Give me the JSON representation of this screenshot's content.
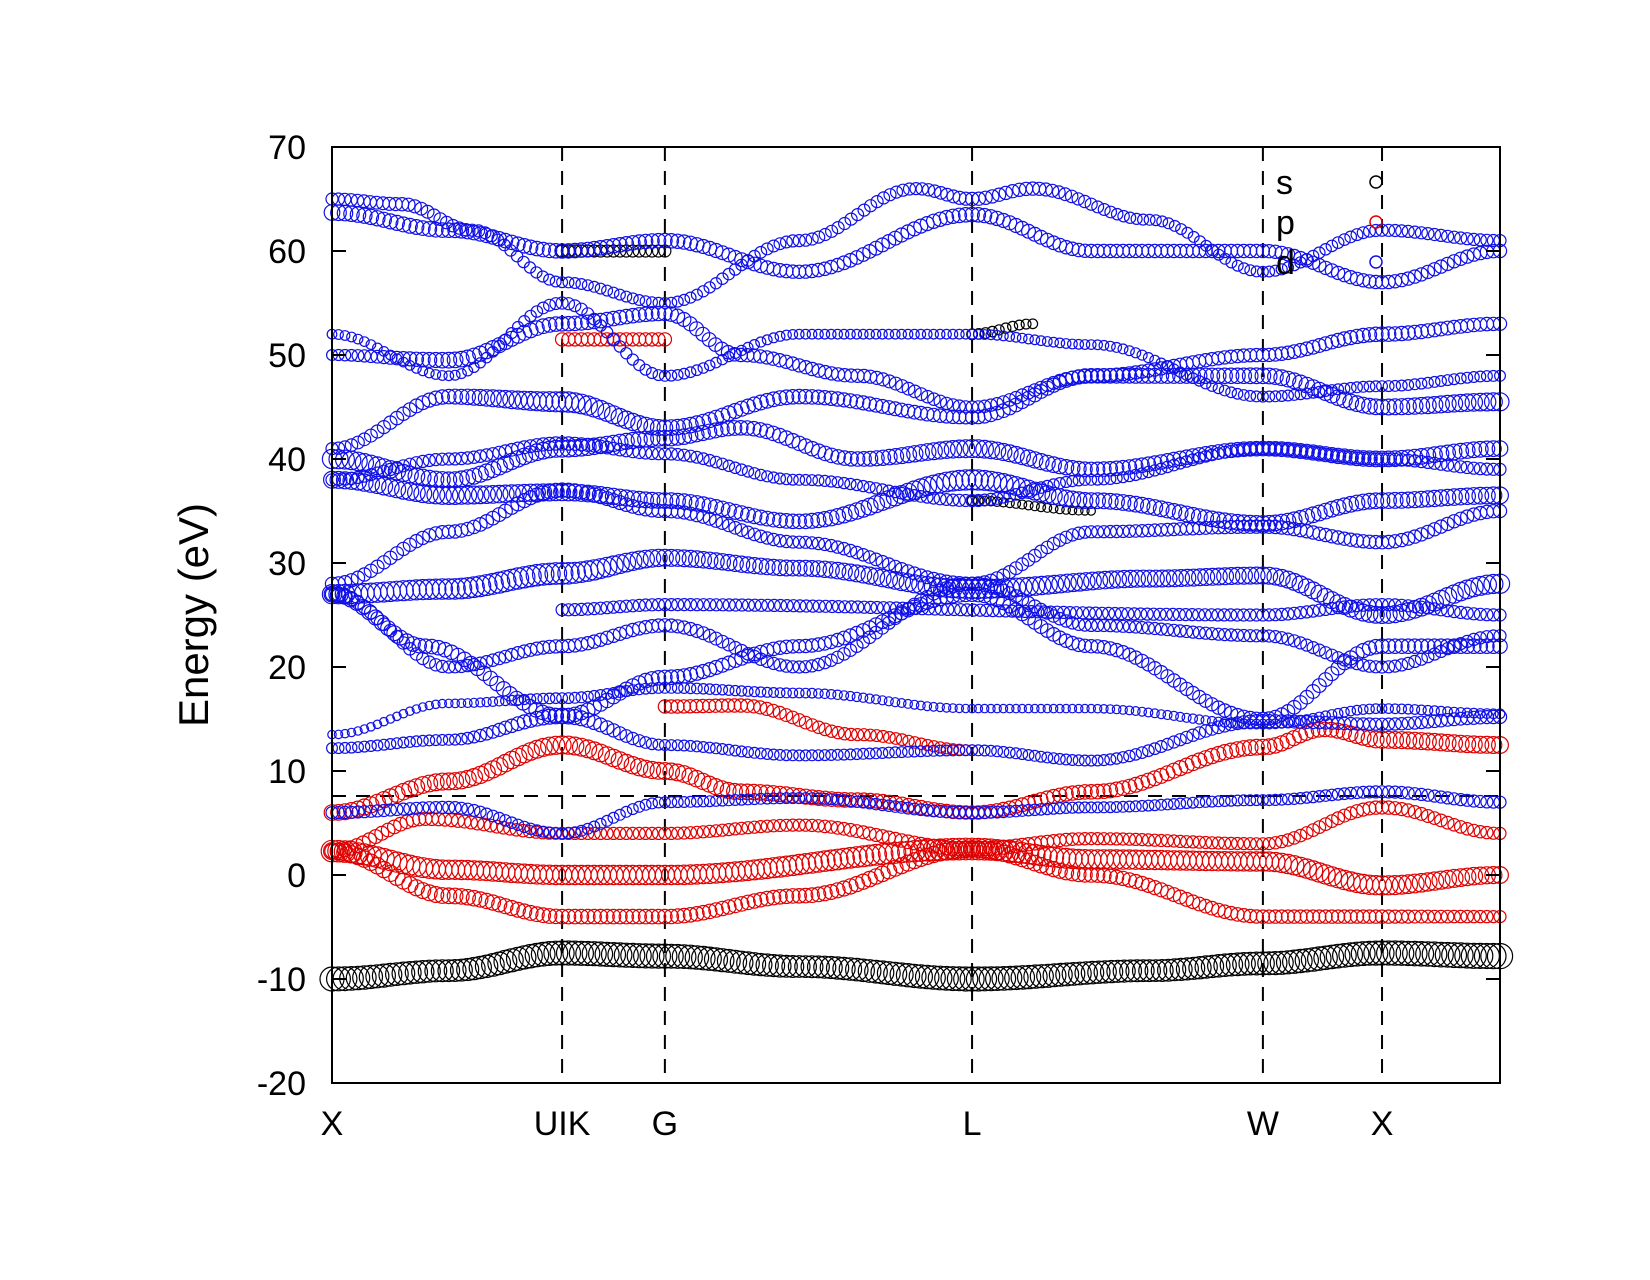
{
  "chart_data": {
    "type": "scatter",
    "title": "",
    "xlabel": "",
    "ylabel": "Energy (eV)",
    "ylim": [
      -20,
      70
    ],
    "yticks": [
      -20,
      -10,
      0,
      10,
      20,
      30,
      40,
      50,
      60,
      70
    ],
    "ytick_labels": [
      "-20",
      "-10",
      "0",
      "10",
      "20",
      "30",
      "40",
      "50",
      "60",
      "70"
    ],
    "xlim": [
      0,
      1
    ],
    "kpoints": [
      {
        "label": "X",
        "pos": 0.0,
        "line": false
      },
      {
        "label": "UIK",
        "pos": 0.197,
        "line": true
      },
      {
        "label": "G",
        "pos": 0.285,
        "line": true
      },
      {
        "label": "L",
        "pos": 0.548,
        "line": true
      },
      {
        "label": "W",
        "pos": 0.797,
        "line": true
      },
      {
        "label": "X",
        "pos": 0.899,
        "line": true
      }
    ],
    "fermi_level": 7.6,
    "legend": {
      "placement": "top-right",
      "entries": [
        {
          "name": "s",
          "color": "#000000"
        },
        {
          "name": "p",
          "color": "#e00000"
        },
        {
          "name": "d",
          "color": "#1010e8"
        }
      ]
    },
    "series": [
      {
        "name": "s",
        "color": "#000000",
        "bands": [
          {
            "x": [
              0,
              0.1,
              0.197,
              0.285,
              0.4,
              0.548,
              0.7,
              0.797,
              0.899,
              1.0
            ],
            "y": [
              -10,
              -9.2,
              -7.5,
              -7.8,
              -8.8,
              -10,
              -9.2,
              -8.5,
              -7.5,
              -7.8
            ],
            "size": [
              0.9,
              0.8,
              0.9,
              0.9,
              0.8,
              0.9,
              0.8,
              0.85,
              0.9,
              0.95
            ]
          },
          {
            "x": [
              0.197,
              0.285
            ],
            "y": [
              60,
              60
            ],
            "size": [
              0.4,
              0.4
            ]
          },
          {
            "x": [
              0.548,
              0.6
            ],
            "y": [
              52,
              53
            ],
            "size": [
              0.35,
              0.3
            ]
          },
          {
            "x": [
              0.548,
              0.65
            ],
            "y": [
              36,
              35
            ],
            "size": [
              0.3,
              0.25
            ]
          }
        ]
      },
      {
        "name": "p",
        "color": "#e00000",
        "bands": [
          {
            "x": [
              0,
              0.1,
              0.197,
              0.285,
              0.548,
              0.65,
              0.797,
              0.899,
              1.0
            ],
            "y": [
              2.3,
              0.5,
              0,
              0,
              2.5,
              1.5,
              1.3,
              -1,
              0
            ],
            "size": [
              0.8,
              0.7,
              0.7,
              0.7,
              0.8,
              0.7,
              0.7,
              0.7,
              0.6
            ]
          },
          {
            "x": [
              0,
              0.1,
              0.197,
              0.285,
              0.4,
              0.548,
              0.65,
              0.797,
              0.899,
              1.0
            ],
            "y": [
              2.3,
              -2,
              -4,
              -4,
              -2,
              2.5,
              0,
              -4,
              -4,
              -4
            ],
            "size": [
              0.6,
              0.55,
              0.5,
              0.5,
              0.5,
              0.6,
              0.5,
              0.45,
              0.45,
              0.4
            ]
          },
          {
            "x": [
              0,
              0.08,
              0.197,
              0.285,
              0.4,
              0.548,
              0.65,
              0.797,
              0.899,
              1.0
            ],
            "y": [
              2.3,
              5.4,
              4,
              4,
              4.8,
              2.5,
              3.5,
              3,
              6.5,
              4
            ],
            "size": [
              0.5,
              0.45,
              0.4,
              0.4,
              0.4,
              0.5,
              0.4,
              0.4,
              0.45,
              0.4
            ]
          },
          {
            "x": [
              0,
              0.1,
              0.197,
              0.285,
              0.35,
              0.45,
              0.548,
              0.65,
              0.797,
              0.85,
              0.899,
              1.0
            ],
            "y": [
              6,
              9,
              12.5,
              10,
              8,
              7.2,
              6,
              8,
              12.3,
              14,
              13,
              12.5
            ],
            "size": [
              0.55,
              0.6,
              0.65,
              0.6,
              0.55,
              0.5,
              0.45,
              0.5,
              0.55,
              0.5,
              0.6,
              0.6
            ]
          },
          {
            "x": [
              0.285,
              0.35,
              0.45,
              0.548
            ],
            "y": [
              16.2,
              16.3,
              13.5,
              12
            ],
            "size": [
              0.45,
              0.45,
              0.4,
              0.35
            ]
          },
          {
            "x": [
              0.197,
              0.285
            ],
            "y": [
              51.5,
              51.5
            ],
            "size": [
              0.45,
              0.45
            ]
          }
        ]
      },
      {
        "name": "d",
        "color": "#1010e8",
        "bands": [
          {
            "x": [
              0,
              0.1,
              0.197,
              0.285,
              0.4,
              0.548,
              0.65,
              0.797,
              0.899,
              1.0
            ],
            "y": [
              6,
              6.5,
              4,
              7,
              7.4,
              6,
              6.5,
              7.2,
              8,
              7
            ],
            "size": [
              0.4,
              0.4,
              0.35,
              0.35,
              0.35,
              0.4,
              0.35,
              0.35,
              0.4,
              0.4
            ]
          },
          {
            "x": [
              0,
              0.1,
              0.197,
              0.285,
              0.4,
              0.548,
              0.65,
              0.797,
              0.899,
              1.0
            ],
            "y": [
              12.2,
              13,
              15.3,
              12.5,
              11.5,
              12,
              11,
              14.8,
              14.5,
              15.2
            ],
            "size": [
              0.35,
              0.35,
              0.55,
              0.35,
              0.35,
              0.35,
              0.35,
              0.45,
              0.4,
              0.45
            ]
          },
          {
            "x": [
              0,
              0.08,
              0.197,
              0.285,
              0.4,
              0.548,
              0.65,
              0.797,
              0.899,
              1.0
            ],
            "y": [
              27,
              22,
              15.3,
              19,
              22,
              27,
              22,
              15,
              22,
              22
            ],
            "size": [
              0.55,
              0.5,
              0.5,
              0.5,
              0.45,
              0.5,
              0.45,
              0.45,
              0.5,
              0.5
            ]
          },
          {
            "x": [
              0,
              0.1,
              0.197,
              0.285,
              0.4,
              0.548,
              0.7,
              0.797,
              0.899,
              1.0
            ],
            "y": [
              27,
              27.5,
              29,
              30.5,
              29.5,
              27.5,
              28.5,
              28.8,
              25,
              28
            ],
            "size": [
              0.7,
              0.75,
              0.8,
              0.6,
              0.55,
              0.7,
              0.6,
              0.6,
              0.6,
              0.7
            ]
          },
          {
            "x": [
              0,
              0.1,
              0.197,
              0.285,
              0.4,
              0.548,
              0.65,
              0.797,
              0.899,
              1.0
            ],
            "y": [
              38,
              36.5,
              36.8,
              36,
              34,
              38,
              36,
              33.8,
              36,
              36.5
            ],
            "size": [
              0.6,
              0.65,
              0.6,
              0.55,
              0.5,
              0.75,
              0.55,
              0.55,
              0.55,
              0.6
            ]
          },
          {
            "x": [
              0,
              0.1,
              0.197,
              0.285,
              0.35,
              0.45,
              0.548,
              0.65,
              0.797,
              0.899,
              1.0
            ],
            "y": [
              40,
              38,
              41,
              42,
              43,
              40,
              41,
              39,
              41,
              40,
              41
            ],
            "size": [
              0.7,
              0.55,
              0.6,
              0.55,
              0.5,
              0.5,
              0.65,
              0.5,
              0.5,
              0.55,
              0.55
            ]
          },
          {
            "x": [
              0,
              0.1,
              0.197,
              0.285,
              0.4,
              0.548,
              0.65,
              0.797,
              0.899,
              1.0
            ],
            "y": [
              41,
              46,
              45.5,
              43,
              46,
              44,
              48,
              48,
              45,
              45.5
            ],
            "size": [
              0.4,
              0.5,
              0.75,
              0.55,
              0.5,
              0.45,
              0.5,
              0.55,
              0.55,
              0.65
            ]
          },
          {
            "x": [
              0,
              0.1,
              0.197,
              0.285,
              0.35,
              0.45,
              0.548,
              0.65,
              0.797,
              0.899,
              1.0
            ],
            "y": [
              50,
              49.5,
              53,
              54,
              50,
              48,
              45,
              48,
              50,
              52,
              53
            ],
            "size": [
              0.35,
              0.55,
              0.5,
              0.5,
              0.45,
              0.45,
              0.4,
              0.45,
              0.45,
              0.5,
              0.45
            ]
          },
          {
            "x": [
              0,
              0.1,
              0.197,
              0.285,
              0.4,
              0.548,
              0.65,
              0.797,
              0.899,
              1.0
            ],
            "y": [
              63.7,
              62,
              60,
              61,
              58,
              63.5,
              60,
              60,
              57,
              60
            ],
            "size": [
              0.55,
              0.5,
              0.5,
              0.5,
              0.45,
              0.5,
              0.45,
              0.45,
              0.45,
              0.45
            ]
          },
          {
            "x": [
              0,
              0.06,
              0.12,
              0.197,
              0.285,
              0.4,
              0.5,
              0.548,
              0.6,
              0.7,
              0.797,
              0.899,
              1.0
            ],
            "y": [
              65,
              64.5,
              62,
              57,
              55,
              61,
              66,
              65,
              66,
              63,
              58,
              62,
              61
            ],
            "size": [
              0.4,
              0.45,
              0.4,
              0.35,
              0.35,
              0.4,
              0.4,
              0.45,
              0.45,
              0.35,
              0.35,
              0.4,
              0.4
            ]
          },
          {
            "x": [
              0,
              0.1,
              0.197,
              0.285,
              0.4,
              0.548,
              0.65,
              0.797,
              0.899,
              1.0
            ],
            "y": [
              28,
              33,
              37,
              35,
              32,
              28,
              33,
              33.5,
              32,
              35
            ],
            "size": [
              0.45,
              0.45,
              0.5,
              0.45,
              0.4,
              0.45,
              0.4,
              0.45,
              0.45,
              0.45
            ]
          },
          {
            "x": [
              0,
              0.1,
              0.197,
              0.285,
              0.4,
              0.548,
              0.65,
              0.797,
              0.899,
              1.0
            ],
            "y": [
              27,
              20,
              22,
              24,
              20,
              28,
              24,
              23,
              20,
              23
            ],
            "size": [
              0.45,
              0.4,
              0.45,
              0.45,
              0.4,
              0.45,
              0.4,
              0.4,
              0.4,
              0.4
            ]
          },
          {
            "x": [
              0,
              0.1,
              0.197,
              0.285,
              0.4,
              0.548,
              0.65,
              0.797,
              0.899,
              1.0
            ],
            "y": [
              38,
              40,
              41.5,
              40.5,
              38,
              36,
              38,
              41,
              40,
              39
            ],
            "size": [
              0.4,
              0.4,
              0.45,
              0.4,
              0.35,
              0.4,
              0.35,
              0.4,
              0.4,
              0.4
            ]
          },
          {
            "x": [
              0,
              0.1,
              0.197,
              0.285,
              0.4,
              0.548,
              0.65,
              0.797,
              0.899,
              1.0
            ],
            "y": [
              52,
              48,
              55,
              48,
              52,
              52,
              51,
              46,
              47,
              48
            ],
            "size": [
              0.3,
              0.3,
              0.4,
              0.35,
              0.3,
              0.3,
              0.3,
              0.35,
              0.35,
              0.35
            ]
          },
          {
            "x": [
              0,
              0.1,
              0.197,
              0.285,
              0.4,
              0.548,
              0.65,
              0.797,
              0.899,
              1.0
            ],
            "y": [
              13.5,
              16.5,
              17,
              18,
              17.5,
              16,
              16,
              14.5,
              16,
              15.5
            ],
            "size": [
              0.25,
              0.25,
              0.35,
              0.35,
              0.3,
              0.25,
              0.25,
              0.3,
              0.3,
              0.3
            ]
          },
          {
            "x": [
              0.197,
              0.285,
              0.797,
              0.899,
              1.0
            ],
            "y": [
              25.5,
              26,
              25,
              26,
              25
            ],
            "size": [
              0.4,
              0.4,
              0.4,
              0.4,
              0.4
            ]
          }
        ]
      }
    ]
  }
}
